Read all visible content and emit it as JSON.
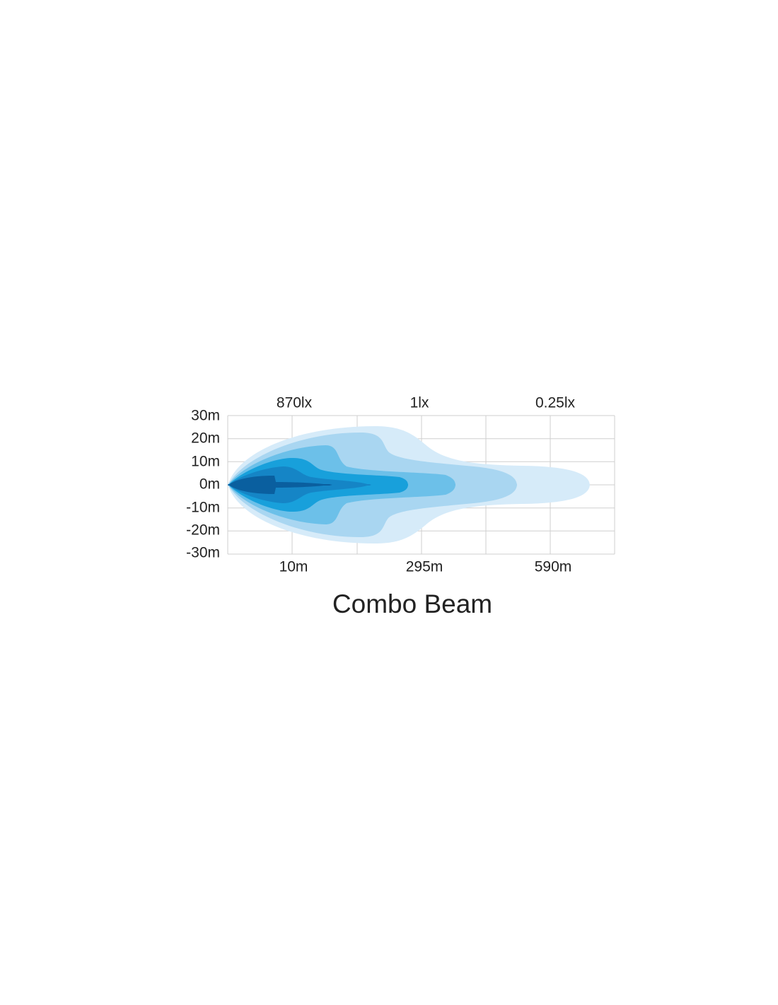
{
  "title": "Combo Beam",
  "top_labels": [
    "870lx",
    "1lx",
    "0.25lx"
  ],
  "y_axis_labels": [
    "30m",
    "20m",
    "10m",
    "0m",
    "-10m",
    "-20m",
    "-30m"
  ],
  "bottom_labels": [
    "10m",
    "295m",
    "590m"
  ]
}
